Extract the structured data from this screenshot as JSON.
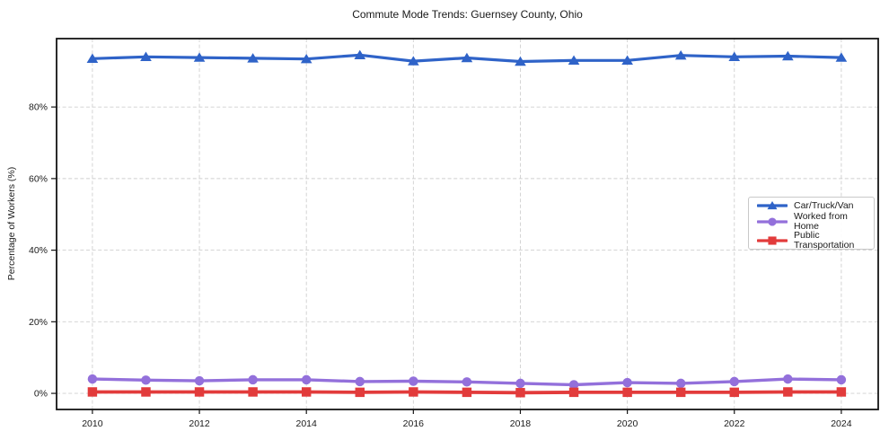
{
  "chart": {
    "title": "Commute Mode Trends: Guernsey County, Ohio"
  },
  "chart_data": {
    "type": "line",
    "title": "Commute Mode Trends: Guernsey County, Ohio",
    "xlabel": "",
    "ylabel": "Percentage of Workers (%)",
    "x": [
      2010,
      2011,
      2012,
      2013,
      2014,
      2015,
      2016,
      2017,
      2018,
      2019,
      2020,
      2021,
      2022,
      2023,
      2024
    ],
    "x_tick_values": [
      2010,
      2012,
      2014,
      2016,
      2018,
      2020,
      2022,
      2024
    ],
    "x_tick_labels": [
      "2010",
      "2012",
      "2014",
      "2016",
      "2018",
      "2020",
      "2022",
      "2024"
    ],
    "y_tick_values": [
      0,
      20,
      40,
      60,
      80
    ],
    "y_tick_labels": [
      "0%",
      "20%",
      "40%",
      "60%",
      "80%"
    ],
    "xlim": [
      2009.33,
      2024.69
    ],
    "ylim": [
      -4.5,
      99.1
    ],
    "grid": true,
    "legend_position": "center-right",
    "series": [
      {
        "name": "Car/Truck/Van",
        "marker": "triangle",
        "color": "#2f63c8",
        "values": [
          93.5,
          94.0,
          93.8,
          93.6,
          93.4,
          94.5,
          92.8,
          93.7,
          92.7,
          93.0,
          93.0,
          94.4,
          94.0,
          94.2,
          93.8
        ]
      },
      {
        "name": "Worked from Home",
        "marker": "circle",
        "color": "#9370db",
        "values": [
          4.0,
          3.7,
          3.5,
          3.8,
          3.8,
          3.3,
          3.4,
          3.2,
          2.8,
          2.4,
          3.0,
          2.8,
          3.3,
          4.0,
          3.8
        ]
      },
      {
        "name": "Public Transportation",
        "marker": "square",
        "color": "#e23b3b",
        "values": [
          0.4,
          0.4,
          0.4,
          0.4,
          0.4,
          0.3,
          0.4,
          0.3,
          0.2,
          0.3,
          0.3,
          0.3,
          0.3,
          0.4,
          0.4
        ]
      }
    ]
  }
}
